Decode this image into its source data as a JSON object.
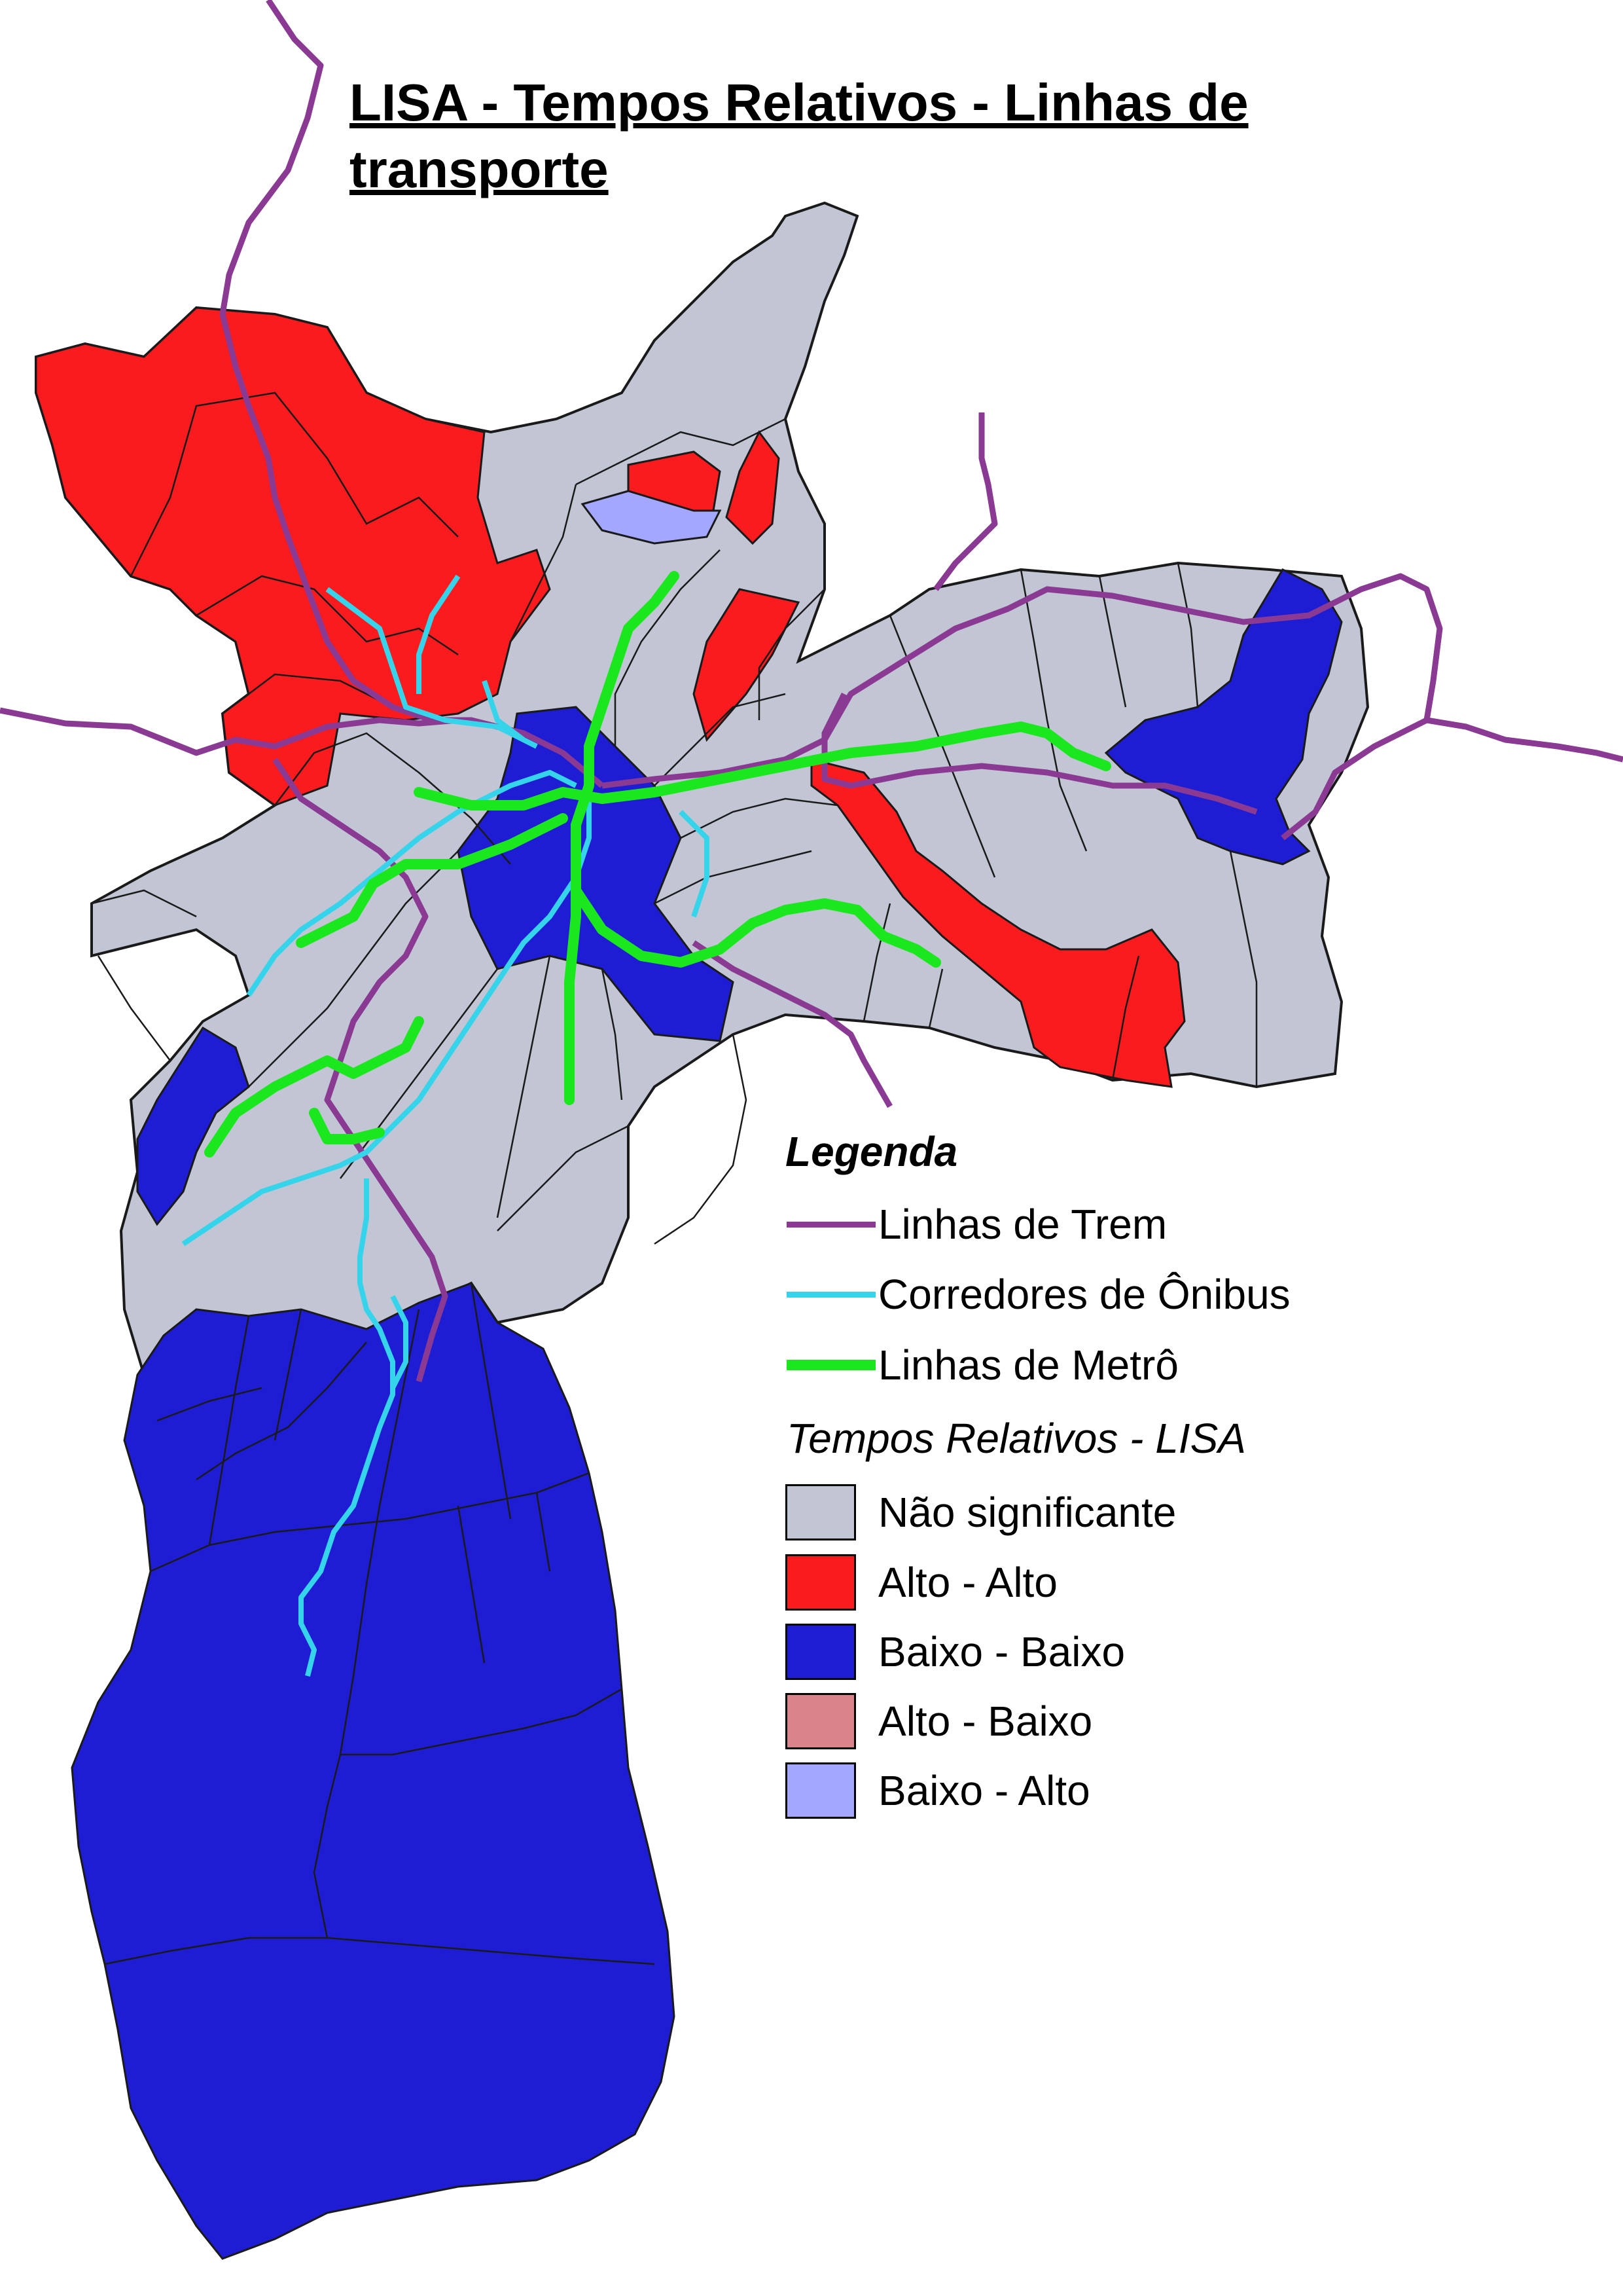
{
  "title": "LISA - Tempos Relativos - Linhas de transporte",
  "colors": {
    "background": "#ffffff",
    "nao_significante": "#c2c5d4",
    "alto_alto": "#fa1b1f",
    "baixo_baixo": "#1f1dd3",
    "alto_baixo": "#d9838a",
    "baixo_alto": "#a4a7ff",
    "trem": "#8a3a93",
    "onibus": "#36d4ea",
    "metro": "#1be71f",
    "borders": "#1a1a1a"
  },
  "legend": {
    "heading": "Legenda",
    "lines": [
      {
        "label": "Linhas de Trem",
        "color": "#8a3a93"
      },
      {
        "label": "Corredores de Ônibus",
        "color": "#36d4ea"
      },
      {
        "label": "Linhas de Metrô",
        "color": "#1be71f"
      }
    ],
    "classes_heading": "Tempos Relativos - LISA",
    "classes": [
      {
        "label": "Não significante",
        "color": "#c2c5d4"
      },
      {
        "label": "Alto - Alto",
        "color": "#fa1b1f"
      },
      {
        "label": "Baixo - Baixo",
        "color": "#1f1dd3"
      },
      {
        "label": "Alto - Baixo",
        "color": "#d9838a"
      },
      {
        "label": "Baixo - Alto",
        "color": "#a4a7ff"
      }
    ]
  }
}
